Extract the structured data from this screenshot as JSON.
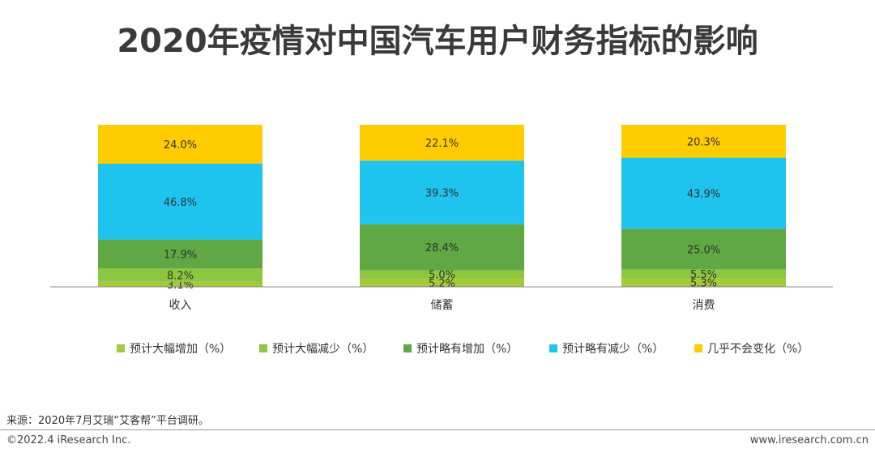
{
  "title": "2020年疫情对中国汽车用户财务指标的影响",
  "chart_data": {
    "type": "bar",
    "stacked": true,
    "categories": [
      "收入",
      "储蓄",
      "消费"
    ],
    "series": [
      {
        "name": "预计大幅增加（%）",
        "color": "#a6c93a",
        "values": [
          3.1,
          5.2,
          5.3
        ]
      },
      {
        "name": "预计大幅减少（%）",
        "color": "#8dc63f",
        "values": [
          8.2,
          5.0,
          5.5
        ]
      },
      {
        "name": "预计略有增加（%）",
        "color": "#5fa843",
        "values": [
          17.9,
          28.4,
          25.0
        ]
      },
      {
        "name": "预计略有减少（%）",
        "color": "#1ec3ee",
        "values": [
          46.8,
          39.3,
          43.9
        ]
      },
      {
        "name": "几乎不会变化（%）",
        "color": "#ffcc00",
        "values": [
          24.0,
          22.1,
          20.3
        ]
      }
    ],
    "labels": [
      [
        "3.1%",
        "5.2%",
        "5.3%"
      ],
      [
        "8.2%",
        "5.0%",
        "5.5%"
      ],
      [
        "17.9%",
        "28.4%",
        "25.0%"
      ],
      [
        "46.8%",
        "39.3%",
        "43.9%"
      ],
      [
        "24.0%",
        "22.1%",
        "20.3%"
      ]
    ],
    "legend_position": "bottom"
  },
  "footer": {
    "source": "来源：2020年7月艾瑞“艾客帮”平台调研。",
    "copyright": "©2022.4 iResearch Inc.",
    "website": "www.iresearch.com.cn"
  }
}
